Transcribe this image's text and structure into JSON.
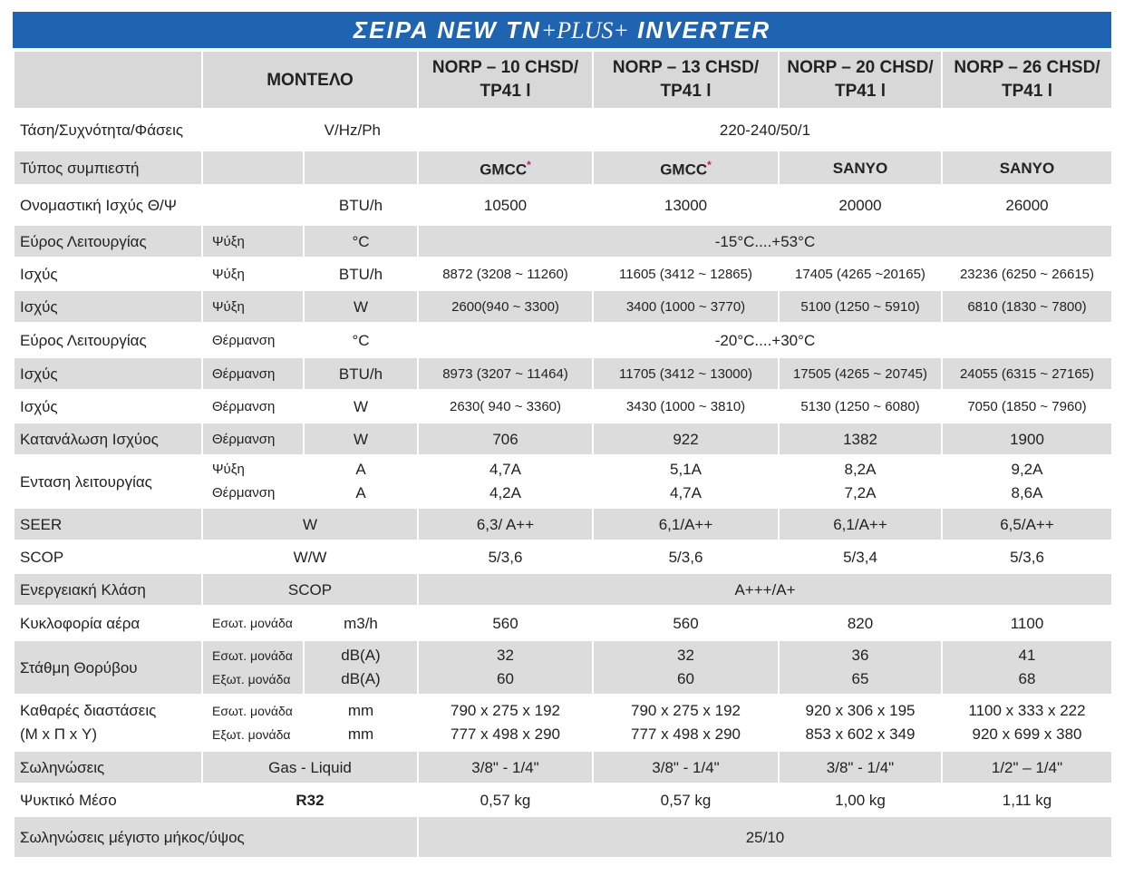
{
  "title": {
    "pre": "ΣΕΙΡΑ NEW TN",
    "plus": "+PLUS+",
    "post": " INVERTER"
  },
  "header": {
    "model_label": "ΜΟΝΤΕΛΟ",
    "models": [
      {
        "l1": "NORP – 10 CHSD/",
        "l2": "TP41 l"
      },
      {
        "l1": "NORP – 13 CHSD/",
        "l2": "TP41 l"
      },
      {
        "l1": "NORP – 20 CHSD/",
        "l2": "TP41 l"
      },
      {
        "l1": "NORP – 26 CHSD/",
        "l2": "TP41 l"
      }
    ]
  },
  "rows": {
    "voltage": {
      "label": "Τάση/Συχνότητα/Φάσεις",
      "unit": "V/Hz/Ph",
      "value": "220-240/50/1"
    },
    "compressor": {
      "label": "Τύπος συμπιεστή",
      "values": [
        "GMCC",
        "GMCC",
        "SANYO",
        "SANYO"
      ],
      "star": "*"
    },
    "nominal": {
      "label": "Ονομαστική Ισχύς Θ/Ψ",
      "unit": "BTU/h",
      "values": [
        "10500",
        "13000",
        "20000",
        "26000"
      ]
    },
    "range_cool": {
      "label": "Εύρος Λειτουργίας",
      "mode": "Ψύξη",
      "unit": "°C",
      "value": "-15°C....+53°C"
    },
    "power_cool_btu": {
      "label": "Ισχύς",
      "mode": "Ψύξη",
      "unit": "BTU/h",
      "values": [
        "8872 (3208 ~ 11260)",
        "11605 (3412 ~ 12865)",
        "17405 (4265 ~20165)",
        "23236 (6250 ~ 26615)"
      ]
    },
    "power_cool_w": {
      "label": "Ισχύς",
      "mode": "Ψύξη",
      "unit": "W",
      "values": [
        "2600(940 ~ 3300)",
        "3400 (1000 ~ 3770)",
        "5100 (1250 ~ 5910)",
        "6810 (1830 ~ 7800)"
      ]
    },
    "range_heat": {
      "label": "Εύρος Λειτουργίας",
      "mode": "Θέρμανση",
      "unit": "°C",
      "value": "-20°C....+30°C"
    },
    "power_heat_btu": {
      "label": "Ισχύς",
      "mode": "Θέρμανση",
      "unit": "BTU/h",
      "values": [
        "8973 (3207 ~ 11464)",
        "11705 (3412 ~ 13000)",
        "17505 (4265 ~ 20745)",
        "24055 (6315 ~ 27165)"
      ]
    },
    "power_heat_w": {
      "label": "Ισχύς",
      "mode": "Θέρμανση",
      "unit": "W",
      "values": [
        "2630( 940 ~ 3360)",
        "3430 (1000 ~ 3810)",
        "5130 (1250 ~ 6080)",
        "7050 (1850 ~ 7960)"
      ]
    },
    "consumption": {
      "label": "Κατανάλωση Ισχύος",
      "mode": "Θέρμανση",
      "unit": "W",
      "values": [
        "706",
        "922",
        "1382",
        "1900"
      ]
    },
    "current": {
      "label": "Ενταση λειτουργίας",
      "mode1": "Ψύξη",
      "mode2": "Θέρμανση",
      "unit1": "A",
      "unit2": "A",
      "values1": [
        "4,7A",
        "5,1A",
        "8,2A",
        "9,2A"
      ],
      "values2": [
        "4,2A",
        "4,7A",
        "7,2A",
        "8,6A"
      ]
    },
    "seer": {
      "label": "SEER",
      "unit": "W",
      "values": [
        "6,3/ A++",
        "6,1/A++",
        "6,1/A++",
        "6,5/A++"
      ]
    },
    "scop": {
      "label": "SCOP",
      "unit": "W/W",
      "values": [
        "5/3,6",
        "5/3,6",
        "5/3,4",
        "5/3,6"
      ]
    },
    "energy_class": {
      "label": "Ενεργειακή Κλάση",
      "unit": "SCOP",
      "value": "A+++/A+"
    },
    "airflow": {
      "label": "Κυκλοφορία αέρα",
      "mode": "Εσωτ. μονάδα",
      "unit": "m3/h",
      "values": [
        "560",
        "560",
        "820",
        "1100"
      ]
    },
    "noise": {
      "label": "Στάθμη Θορύβου",
      "mode1": "Εσωτ. μονάδα",
      "mode2": "Εξωτ. μονάδα",
      "unit1": "dB(A)",
      "unit2": "dB(A)",
      "values1": [
        "32",
        "32",
        "36",
        "41"
      ],
      "values2": [
        "60",
        "60",
        "65",
        "68"
      ]
    },
    "dimensions": {
      "label1": "Καθαρές διαστάσεις",
      "label2": "(Μ x Π x Υ)",
      "mode1": "Εσωτ. μονάδα",
      "mode2": "Εξωτ. μονάδα",
      "unit1": "mm",
      "unit2": "mm",
      "values1": [
        "790 x 275 x 192",
        "790 x 275 x 192",
        "920 x 306 x 195",
        "1100 x 333 x 222"
      ],
      "values2": [
        "777 x 498 x 290",
        "777 x 498 x 290",
        "853 x 602 x 349",
        "920 x 699 x 380"
      ]
    },
    "piping": {
      "label": "Σωληνώσεις",
      "unit": "Gas - Liquid",
      "values": [
        "3/8\" - 1/4\"",
        "3/8\" - 1/4\"",
        "3/8\" - 1/4\"",
        "1/2\" – 1/4\""
      ]
    },
    "refrigerant": {
      "label": "Ψυκτικό Μέσο",
      "unit": "R32",
      "values": [
        "0,57 kg",
        "0,57 kg",
        "1,00 kg",
        "1,11 kg"
      ]
    },
    "pipe_length": {
      "label": "Σωληνώσεις μέγιστο μήκος/ύψος",
      "value": "25/10"
    }
  }
}
